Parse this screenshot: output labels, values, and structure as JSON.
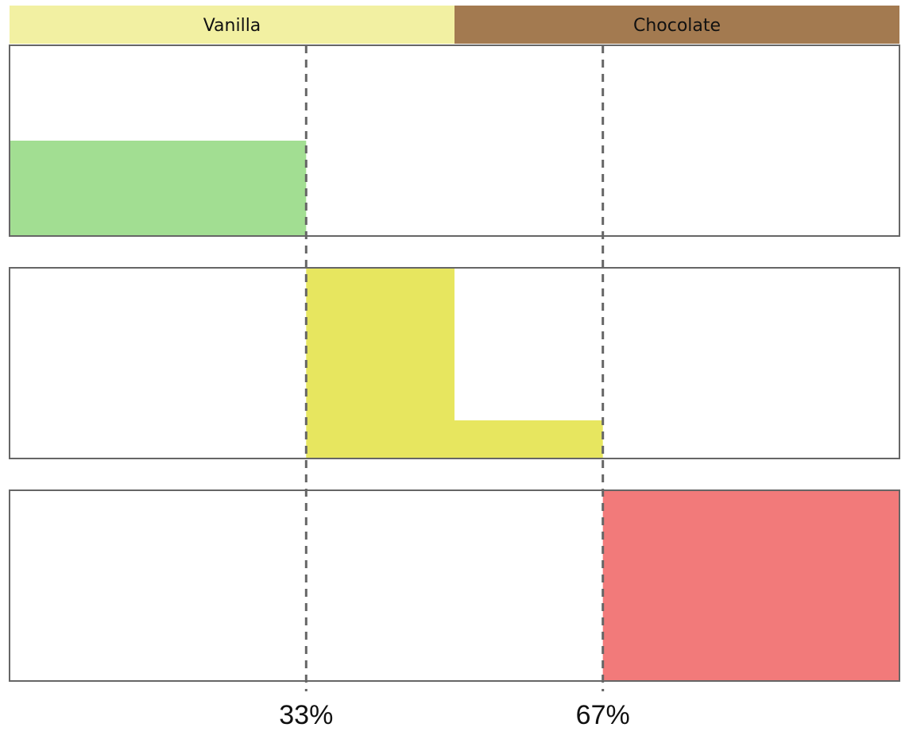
{
  "chart_data": {
    "type": "area",
    "categories": [
      {
        "label": "Vanilla",
        "color": "#f2f0a2",
        "range": [
          0,
          0.5
        ]
      },
      {
        "label": "Chocolate",
        "color": "#a37a50",
        "range": [
          0.5,
          1.0
        ]
      }
    ],
    "thresholds": [
      0.3333,
      0.6667
    ],
    "threshold_labels": [
      "33%",
      "67%"
    ],
    "xlim": [
      0,
      1
    ],
    "ylim": [
      0,
      1
    ],
    "grid": false,
    "series": [
      {
        "color": "#a2de92",
        "segments": [
          {
            "x_start": 0.0,
            "x_end": 0.3333,
            "value": 0.5
          }
        ]
      },
      {
        "color": "#e7e65f",
        "segments": [
          {
            "x_start": 0.3333,
            "x_end": 0.5,
            "value": 1.0
          },
          {
            "x_start": 0.5,
            "x_end": 0.6667,
            "value": 0.2
          }
        ]
      },
      {
        "color": "#f27a7a",
        "segments": [
          {
            "x_start": 0.6667,
            "x_end": 1.0,
            "value": 1.0
          }
        ]
      }
    ]
  }
}
